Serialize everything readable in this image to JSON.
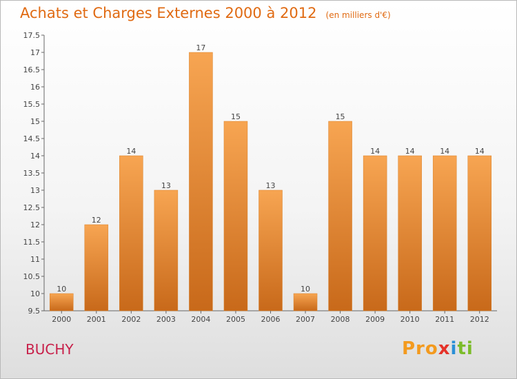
{
  "header": {
    "title": "Achats et Charges Externes 2000 à 2012",
    "subtitle": "(en milliers d'€)"
  },
  "footer": {
    "commune": "BUCHY",
    "logo": {
      "p1": "Pro",
      "p2": "x",
      "p3": "i",
      "p4": "ti"
    }
  },
  "colors": {
    "bar_top": "#f7a552",
    "bar_bottom": "#c8691a",
    "title": "#e06a12",
    "commune": "#c8204a"
  },
  "chart_data": {
    "type": "bar",
    "title": "Achats et Charges Externes 2000 à 2012",
    "subtitle": "(en milliers d'€)",
    "categories": [
      "2000",
      "2001",
      "2002",
      "2003",
      "2004",
      "2005",
      "2006",
      "2007",
      "2008",
      "2009",
      "2010",
      "2011",
      "2012"
    ],
    "values": [
      10,
      12,
      14,
      13,
      17,
      15,
      13,
      10,
      15,
      14,
      14,
      14,
      14
    ],
    "data_labels": [
      "10",
      "12",
      "14",
      "13",
      "17",
      "15",
      "13",
      "10",
      "15",
      "14",
      "14",
      "14",
      "14"
    ],
    "ylim": [
      9.5,
      17.5
    ],
    "yticks": [
      "9.5",
      "10",
      "10.5",
      "11",
      "11.5",
      "12",
      "12.5",
      "13",
      "13.5",
      "14",
      "14.5",
      "15",
      "15.5",
      "16",
      "16.5",
      "17",
      "17.5"
    ],
    "grid": false,
    "legend": "none"
  }
}
